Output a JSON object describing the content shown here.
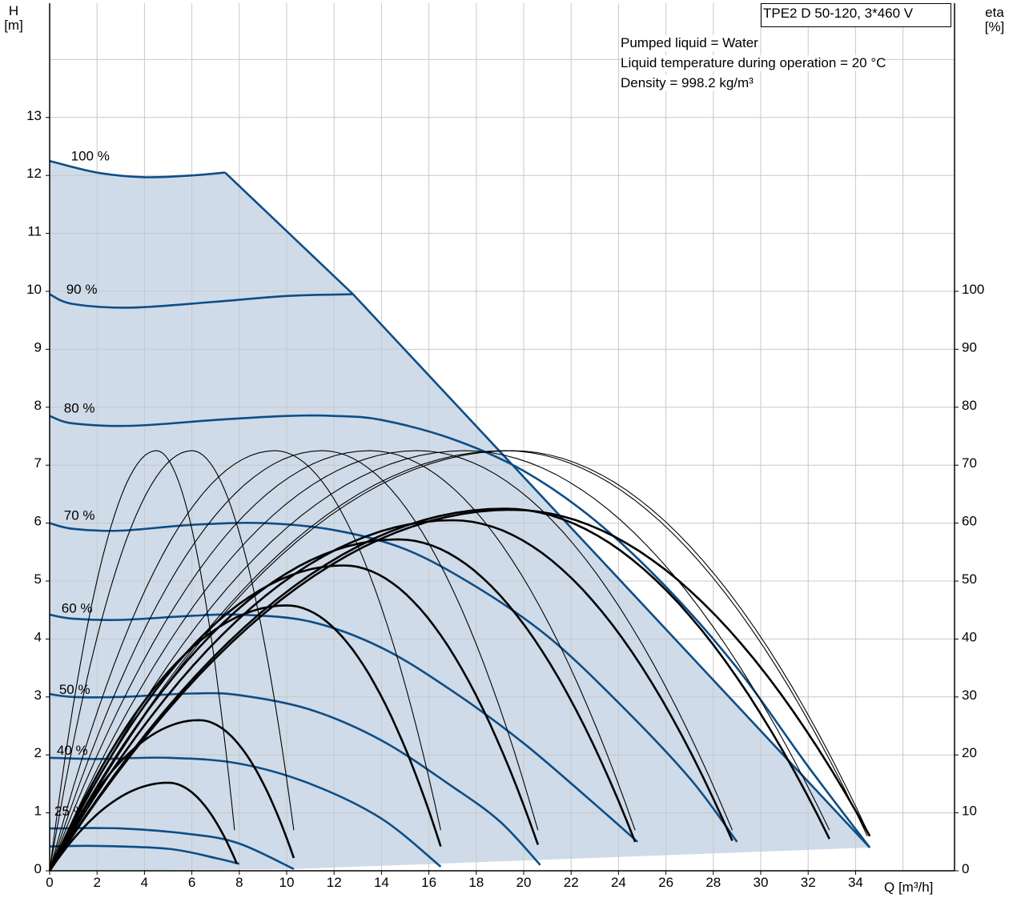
{
  "chart_data": {
    "type": "line",
    "title": "TPE2 D 50-120, 3*460 V",
    "notes": [
      "Pumped liquid = Water",
      "Liquid temperature during operation = 20 °C",
      "Density = 998.2 kg/m³"
    ],
    "xlabel": "Q [m³/h]",
    "ylabel_left": "H",
    "ylabel_left_unit": "[m]",
    "ylabel_right": "eta",
    "ylabel_right_unit": "[%]",
    "xlim": [
      0,
      36
    ],
    "ylim": [
      0,
      15
    ],
    "eta_lim": [
      0,
      100
    ],
    "x_ticks": [
      "0",
      "2",
      "4",
      "6",
      "8",
      "10",
      "12",
      "14",
      "16",
      "18",
      "20",
      "22",
      "24",
      "26",
      "28",
      "30",
      "32",
      "34"
    ],
    "y_ticks": [
      "0",
      "1",
      "2",
      "3",
      "4",
      "5",
      "6",
      "7",
      "8",
      "9",
      "10",
      "11",
      "12",
      "13"
    ],
    "eta_ticks": [
      "0",
      "10",
      "20",
      "30",
      "40",
      "50",
      "60",
      "70",
      "80",
      "90",
      "100"
    ],
    "grid": true,
    "colors": {
      "head": "#0d4d87",
      "efficiency": "#000000",
      "area": "#cfdbe8",
      "grid": "#c8c8c8"
    },
    "operating_area": [
      [
        0,
        12.25
      ],
      [
        7.4,
        12.05
      ],
      [
        12.8,
        9.95
      ],
      [
        34.6,
        0.4
      ],
      [
        10.3,
        0.03
      ],
      [
        0,
        0
      ]
    ],
    "head_curves": [
      {
        "name": "100 %",
        "label_pos": [
          0.9,
          12.2
        ],
        "points": [
          [
            0,
            12.25
          ],
          [
            2,
            12.05
          ],
          [
            4,
            11.97
          ],
          [
            6,
            12.0
          ],
          [
            7.4,
            12.05
          ]
        ]
      },
      {
        "name": "90 %",
        "label_pos": [
          0.7,
          9.9
        ],
        "points": [
          [
            0,
            9.95
          ],
          [
            1,
            9.78
          ],
          [
            3.5,
            9.72
          ],
          [
            7,
            9.82
          ],
          [
            10,
            9.92
          ],
          [
            12.8,
            9.95
          ]
        ]
      },
      {
        "name": "80 %",
        "label_pos": [
          0.6,
          7.85
        ],
        "points": [
          [
            0,
            7.85
          ],
          [
            1,
            7.72
          ],
          [
            3.5,
            7.68
          ],
          [
            7,
            7.78
          ],
          [
            10,
            7.85
          ],
          [
            12,
            7.85
          ],
          [
            14,
            7.78
          ],
          [
            17,
            7.45
          ],
          [
            20,
            6.9
          ],
          [
            23,
            6.05
          ],
          [
            26,
            4.9
          ],
          [
            29,
            3.5
          ],
          [
            32,
            1.8
          ],
          [
            34.6,
            0.4
          ]
        ]
      },
      {
        "name": "70 %",
        "label_pos": [
          0.6,
          6.0
        ],
        "points": [
          [
            0,
            6.0
          ],
          [
            1,
            5.9
          ],
          [
            3,
            5.87
          ],
          [
            6,
            5.97
          ],
          [
            9,
            6.0
          ],
          [
            12,
            5.88
          ],
          [
            15,
            5.55
          ],
          [
            18,
            4.9
          ],
          [
            21,
            4.05
          ],
          [
            24,
            2.9
          ],
          [
            27,
            1.6
          ],
          [
            29,
            0.5
          ]
        ]
      },
      {
        "name": "60 %",
        "label_pos": [
          0.5,
          4.4
        ],
        "points": [
          [
            0,
            4.42
          ],
          [
            1,
            4.35
          ],
          [
            3,
            4.33
          ],
          [
            6,
            4.4
          ],
          [
            8,
            4.42
          ],
          [
            11,
            4.3
          ],
          [
            14,
            3.85
          ],
          [
            17,
            3.1
          ],
          [
            20,
            2.2
          ],
          [
            23,
            1.15
          ],
          [
            24.8,
            0.5
          ]
        ]
      },
      {
        "name": "50 %",
        "label_pos": [
          0.4,
          3.0
        ],
        "points": [
          [
            0,
            3.05
          ],
          [
            1,
            3.0
          ],
          [
            3,
            3.0
          ],
          [
            6,
            3.06
          ],
          [
            8,
            3.03
          ],
          [
            11,
            2.78
          ],
          [
            14,
            2.25
          ],
          [
            17,
            1.45
          ],
          [
            19,
            0.85
          ],
          [
            20.7,
            0.1
          ]
        ]
      },
      {
        "name": "40 %",
        "label_pos": [
          0.3,
          1.95
        ],
        "points": [
          [
            0,
            1.95
          ],
          [
            2,
            1.93
          ],
          [
            5,
            1.95
          ],
          [
            8,
            1.85
          ],
          [
            11,
            1.5
          ],
          [
            14,
            0.9
          ],
          [
            16.5,
            0.07
          ]
        ]
      },
      {
        "name": "25 %",
        "label_pos": [
          0.2,
          0.9
        ],
        "points": [
          [
            0,
            0.73
          ],
          [
            3,
            0.73
          ],
          [
            6,
            0.63
          ],
          [
            8,
            0.47
          ],
          [
            10.3,
            0.03
          ]
        ]
      },
      {
        "name": "",
        "label_pos": null,
        "points": [
          [
            0,
            0.42
          ],
          [
            2,
            0.43
          ],
          [
            5,
            0.38
          ],
          [
            7,
            0.22
          ],
          [
            8,
            0.12
          ]
        ]
      }
    ],
    "eta_series_thin": [
      {
        "peak_x": 4.5,
        "peak": 72.5,
        "end_x": 7.8,
        "end": 7
      },
      {
        "peak_x": 6.0,
        "peak": 72.5,
        "end_x": 10.3,
        "end": 7
      },
      {
        "peak_x": 9.5,
        "peak": 72.5,
        "end_x": 16.5,
        "end": 7
      },
      {
        "peak_x": 11.5,
        "peak": 72.5,
        "end_x": 20.6,
        "end": 7
      },
      {
        "peak_x": 13.5,
        "peak": 72.5,
        "end_x": 24.7,
        "end": 7
      },
      {
        "peak_x": 15.5,
        "peak": 72.5,
        "end_x": 28.8,
        "end": 7
      },
      {
        "peak_x": 17.5,
        "peak": 72.5,
        "end_x": 32.9,
        "end": 7
      },
      {
        "peak_x": 19.2,
        "peak": 72.5,
        "end_x": 34.5,
        "end": 6
      },
      {
        "peak_x": 19.5,
        "peak": 72.5,
        "end_x": 34.6,
        "end": 6
      }
    ],
    "eta_series_thick": [
      {
        "peak_x": 5.0,
        "peak": 15.2,
        "end_x": 7.9,
        "end": 1.2
      },
      {
        "peak_x": 6.3,
        "peak": 26.0,
        "end_x": 10.3,
        "end": 2.2
      },
      {
        "peak_x": 10.0,
        "peak": 45.8,
        "end_x": 16.5,
        "end": 4.2
      },
      {
        "peak_x": 12.4,
        "peak": 52.7,
        "end_x": 20.6,
        "end": 4.5
      },
      {
        "peak_x": 14.7,
        "peak": 57.2,
        "end_x": 24.7,
        "end": 5.0
      },
      {
        "peak_x": 17.0,
        "peak": 60.5,
        "end_x": 28.8,
        "end": 5.2
      },
      {
        "peak_x": 19.2,
        "peak": 62.5,
        "end_x": 32.9,
        "end": 5.5
      },
      {
        "peak_x": 19.5,
        "peak": 62.3,
        "end_x": 34.6,
        "end": 6.0
      }
    ]
  }
}
